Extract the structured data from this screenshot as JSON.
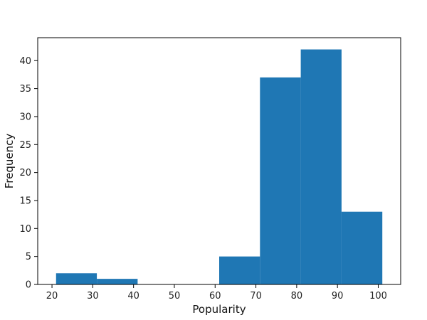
{
  "chart_data": {
    "type": "bar",
    "title": "",
    "xlabel": "Popularity",
    "ylabel": "Frequency",
    "bins": [
      {
        "start": 21,
        "end": 31,
        "value": 2
      },
      {
        "start": 31,
        "end": 41,
        "value": 1
      },
      {
        "start": 41,
        "end": 51,
        "value": 0
      },
      {
        "start": 51,
        "end": 61,
        "value": 0
      },
      {
        "start": 61,
        "end": 71,
        "value": 5
      },
      {
        "start": 71,
        "end": 81,
        "value": 37
      },
      {
        "start": 81,
        "end": 91,
        "value": 42
      },
      {
        "start": 91,
        "end": 101,
        "value": 13
      }
    ],
    "xlim": [
      16.5,
      105.5
    ],
    "ylim": [
      0,
      44.1
    ],
    "xticks": [
      20,
      30,
      40,
      50,
      60,
      70,
      80,
      90,
      100
    ],
    "yticks": [
      0,
      5,
      10,
      15,
      20,
      25,
      30,
      35,
      40
    ],
    "bar_color": "#1f77b4",
    "grid": false,
    "legend": false
  }
}
